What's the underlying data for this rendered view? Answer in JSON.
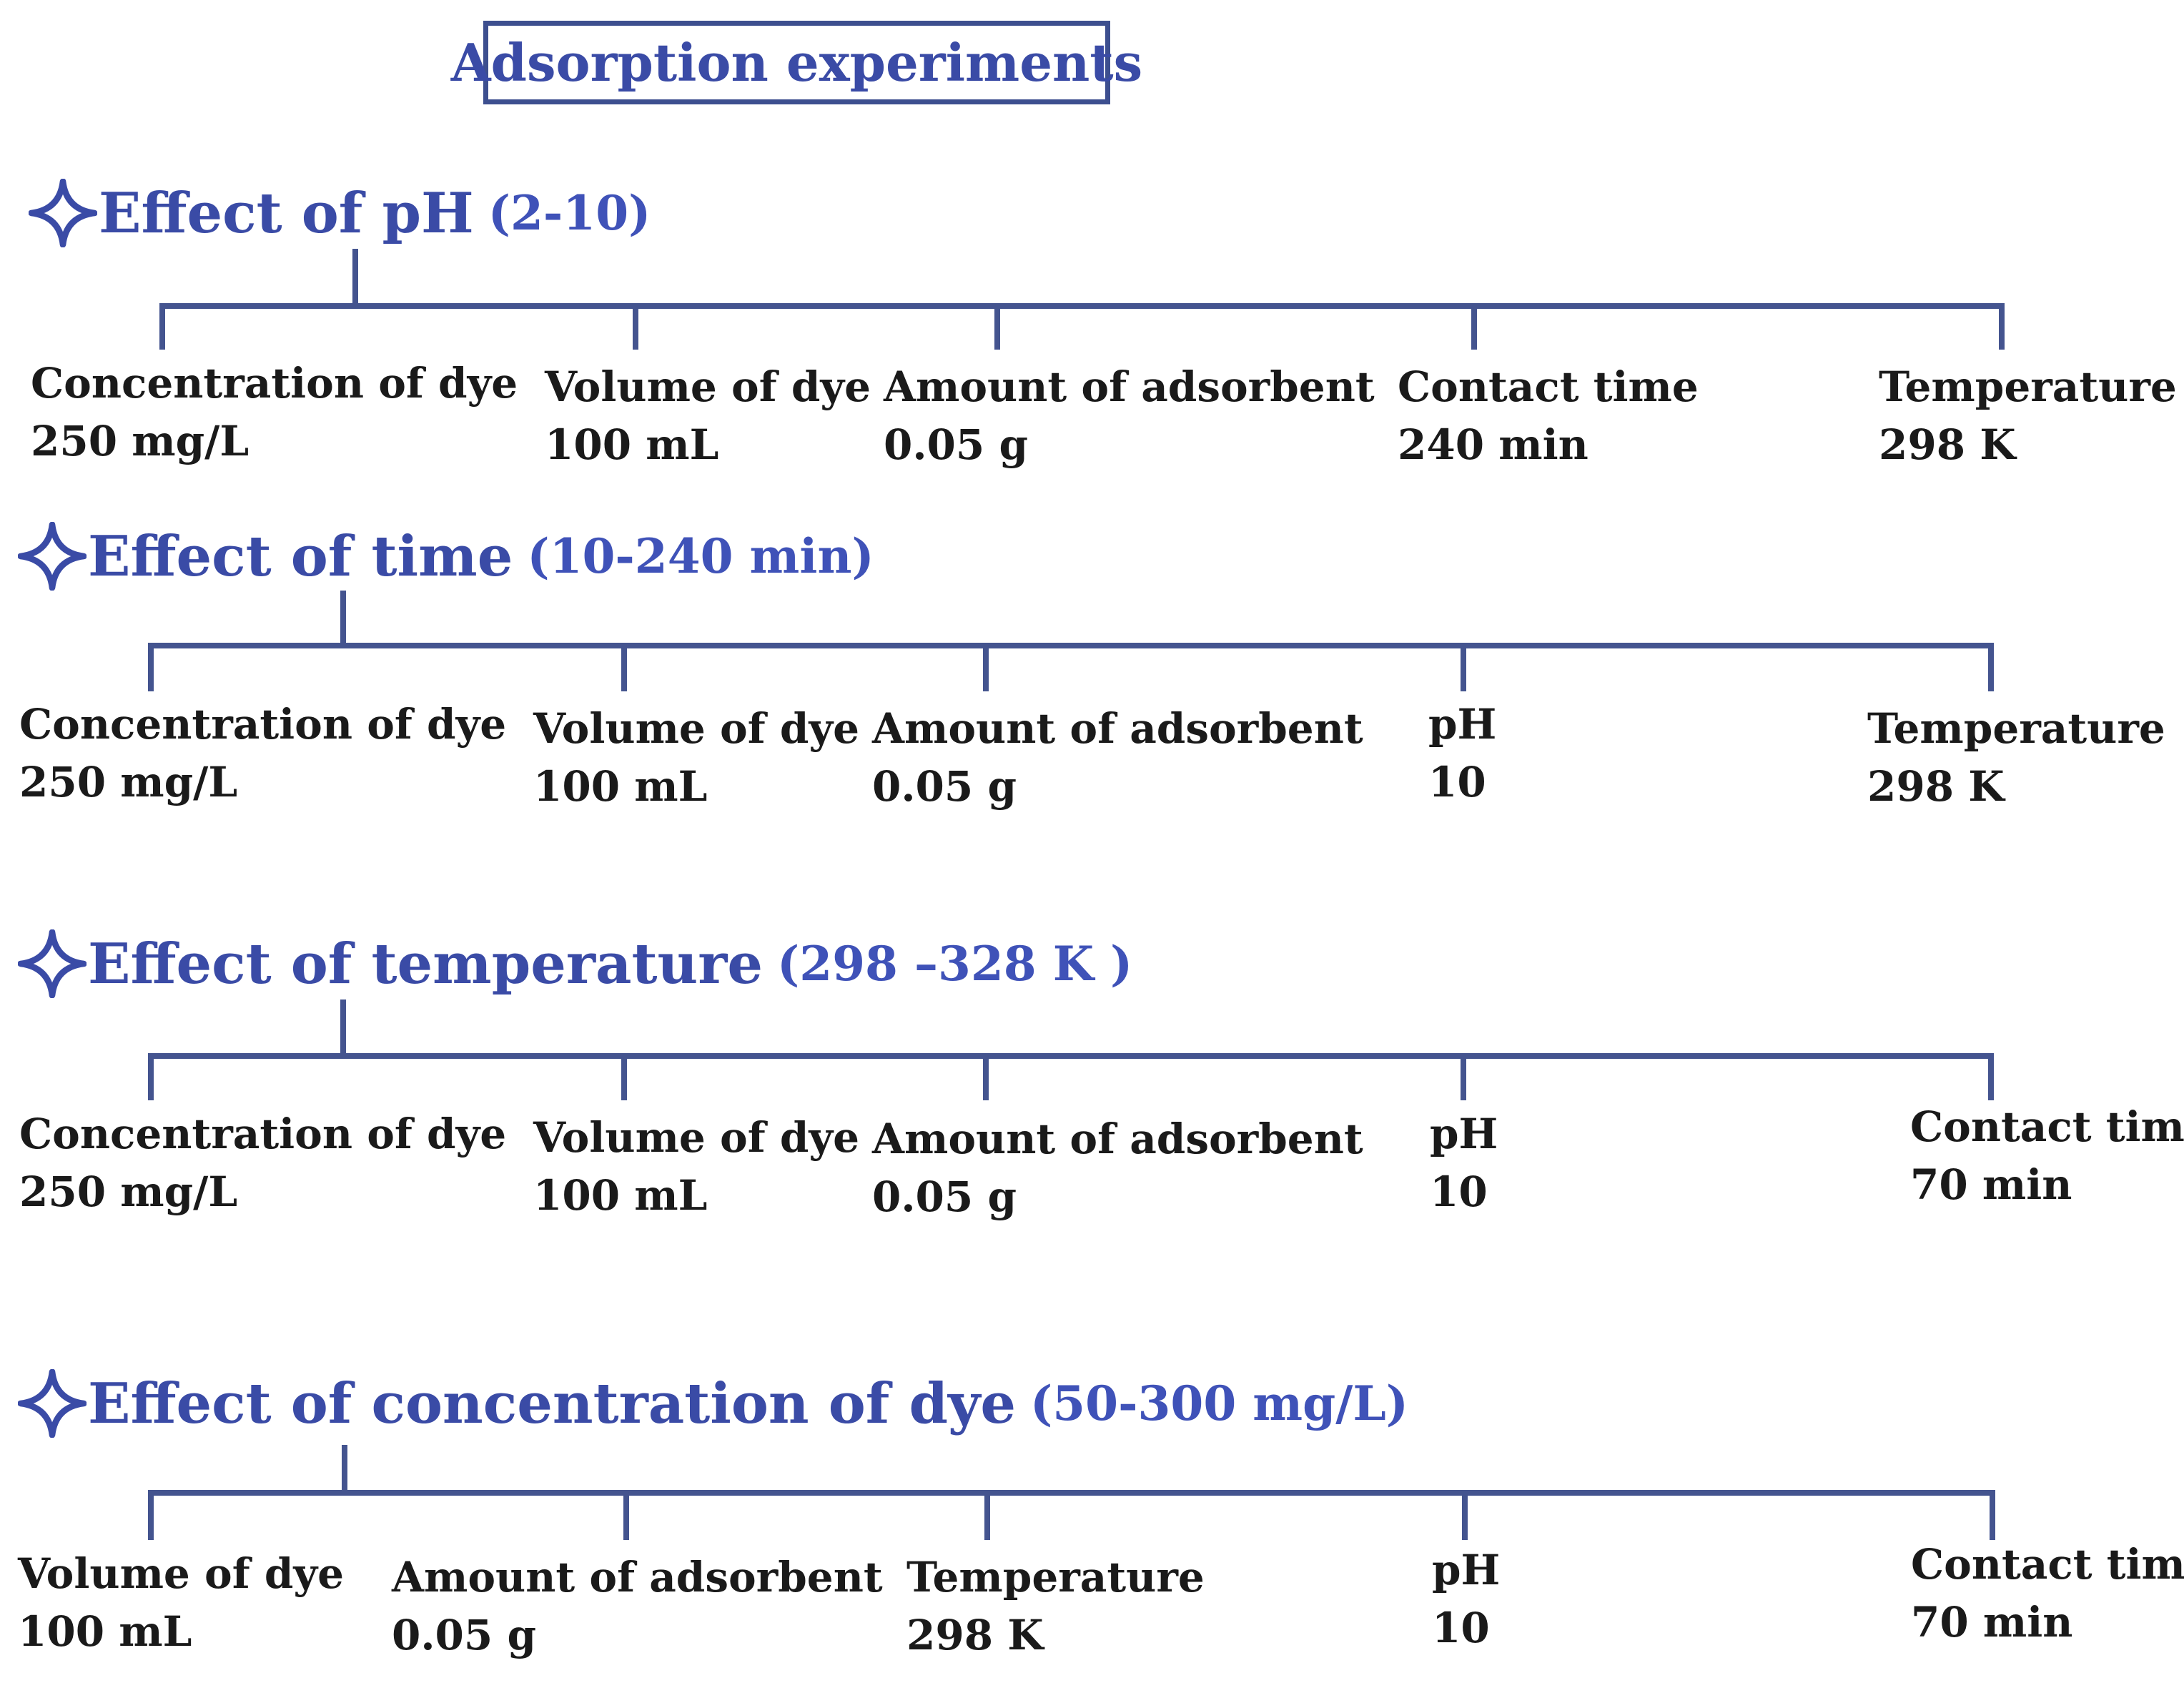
{
  "title": "Adsorption experiments",
  "colors": {
    "accent": "#3a4ba6",
    "line": "#44548f",
    "text": "#1a1a1a"
  },
  "icon": "four-point-star-icon",
  "sections": [
    {
      "heading": "Effect of pH",
      "range": "(2-10)",
      "params": [
        {
          "label": "Concentration of dye",
          "value": "250  mg/L"
        },
        {
          "label": "Volume of dye",
          "value": "100 mL"
        },
        {
          "label": "Amount of adsorbent",
          "value": "0.05 g"
        },
        {
          "label": "Contact time",
          "value": "240  min"
        },
        {
          "label": "Temperature",
          "value": "298 K"
        }
      ]
    },
    {
      "heading": "Effect of time",
      "range": "(10-240 min)",
      "params": [
        {
          "label": "Concentration of dye",
          "value": "250  mg/L"
        },
        {
          "label": "Volume of dye",
          "value": "100 mL"
        },
        {
          "label": "Amount of adsorbent",
          "value": "0.05 g"
        },
        {
          "label": "pH",
          "value": "10"
        },
        {
          "label": "Temperature",
          "value": "298 K"
        }
      ]
    },
    {
      "heading": "Effect of temperature",
      "range": "(298 –328 K )",
      "params": [
        {
          "label": "Concentration of dye",
          "value": "250  mg/L"
        },
        {
          "label": "Volume of dye",
          "value": "100 mL"
        },
        {
          "label": "Amount of adsorbent",
          "value": "0.05 g"
        },
        {
          "label": "pH",
          "value": "10"
        },
        {
          "label": "Contact time",
          "value": "70  min"
        }
      ]
    },
    {
      "heading": "Effect of concentration of dye",
      "range": "(50-300 mg/L)",
      "params": [
        {
          "label": "Volume of dye",
          "value": "100 mL"
        },
        {
          "label": "Amount of adsorbent",
          "value": "0.05 g"
        },
        {
          "label": "Temperature",
          "value": "298 K"
        },
        {
          "label": "pH",
          "value": "10"
        },
        {
          "label": "Contact time",
          "value": "70 min"
        }
      ]
    }
  ]
}
